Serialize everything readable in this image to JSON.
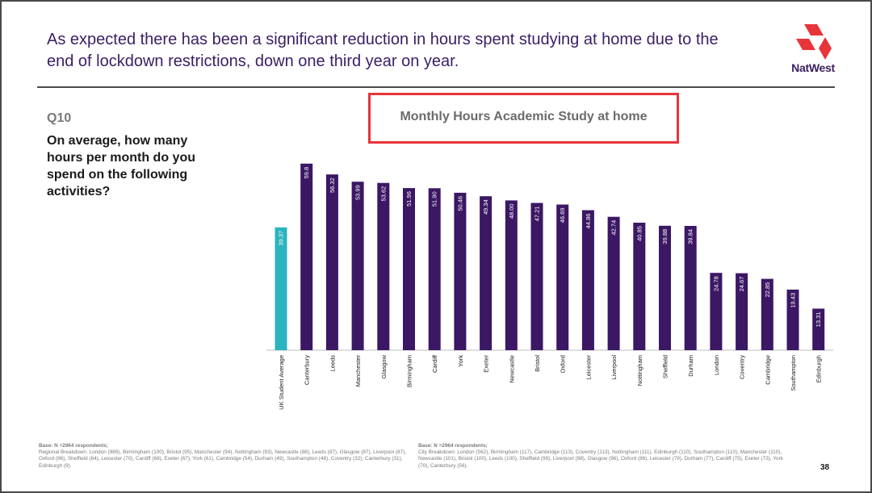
{
  "slide": {
    "headline": "As expected there has been a significant reduction in hours spent studying at home due to the end of lockdown restrictions, down one third year on year.",
    "brand": "NatWest",
    "question_number": "Q10",
    "question_text": "On average, how many hours per month do you spend on the following activities?",
    "page_number": "38",
    "base_left_title": "Base: N =2964 respondents;",
    "base_left_text": "Regional Breakdown: London (989), Birmingham (100), Bristol (95), Manchester (94), Nottingham (93), Newcastle (88), Leeds (87), Glasgow (87), Liverpool (87), Oxford (86), Sheffield (84), Leicester (70), Cardiff (68), Exeter (67), York (61), Cambridge (54), Durham (49), Southampton (48), Coventry (32), Canterbury (31), Edinburgh (9).",
    "base_right_title": "Base: N =2964 respondents;",
    "base_right_text": "City Breakdown: London (562), Birmingham (117), Cambridge (113), Coventry (113), Nottingham (111), Edinburgh (110), Southampton (110), Manchester (110), Newcastle (101), Bristol (100), Leeds (100), Sheffield (99), Liverpool (98), Glasgow (96), Oxford (86), Leicester (79), Durham (77), Cardiff (75), Exeter (73), York (70), Canterbury (56).",
    "colors": {
      "headline": "#3a1f63",
      "bar": "#3b1764",
      "average_bar": "#2bb3c0",
      "highlight_box": "#e8353a",
      "logo": "#e8353a"
    }
  },
  "chart_data": {
    "type": "bar",
    "title": "Monthly Hours Academic Study at home",
    "categories": [
      "UK Student Average",
      "Canterbury",
      "Leeds",
      "Manchester",
      "Glasgow",
      "Birmingham",
      "Cardiff",
      "York",
      "Exeter",
      "Newcastle",
      "Bristol",
      "Oxford",
      "Leicester",
      "Liverpool",
      "Nottingham",
      "Sheffield",
      "Durham",
      "London",
      "Coventry",
      "Cambridge",
      "Southampton",
      "Edinburgh"
    ],
    "values": [
      39.37,
      59.8,
      56.32,
      53.99,
      53.62,
      51.96,
      51.9,
      50.46,
      49.34,
      48.0,
      47.21,
      46.69,
      44.86,
      42.74,
      40.85,
      39.88,
      39.84,
      24.78,
      24.67,
      22.85,
      19.43,
      13.31
    ],
    "value_labels": [
      "39.37",
      "59.8",
      "56.32",
      "53.99",
      "53.62",
      "51.96",
      "51.90",
      "50.46",
      "49.34",
      "48.00",
      "47.21",
      "46.69",
      "44.86",
      "42.74",
      "40.85",
      "39.88",
      "39.84",
      "24.78",
      "24.67",
      "22.85",
      "19.43",
      "13.31"
    ],
    "highlight_index": 0,
    "ylim": [
      0,
      60
    ],
    "grid": false,
    "legend": "none"
  }
}
